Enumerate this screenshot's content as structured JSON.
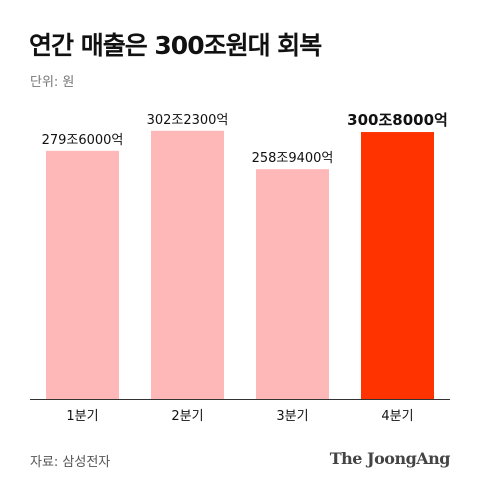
{
  "chart_data": {
    "type": "bar",
    "title": "연간 매출은 300조원대 회복",
    "unit_label": "단위: 원",
    "categories": [
      "1분기",
      "2분기",
      "3분기",
      "4분기"
    ],
    "values": [
      279.6,
      302.23,
      258.94,
      300.8
    ],
    "value_labels": [
      "279조6000억",
      "302조2300억",
      "258조9400억",
      "300조8000억"
    ],
    "ylim": [
      0,
      320
    ],
    "grid": false,
    "colors": {
      "default": "#ffb8b8",
      "highlight": "#ff3300",
      "baseline": "#333333"
    },
    "highlight_index": 3
  },
  "source": "자료: 삼성전자",
  "logo_text": "The JoongAng"
}
